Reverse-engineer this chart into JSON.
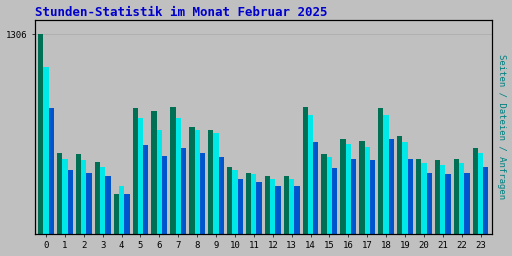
{
  "title": "Stunden-Statistik im Monat Februar 2025",
  "ylabel_right": "Seiten / Dateien / Anfragen",
  "background_color": "#c0c0c0",
  "plot_bg_color": "#c0c0c0",
  "title_color": "#0000cc",
  "ylabel_color": "#008080",
  "bar_width": 0.28,
  "hours": [
    0,
    1,
    2,
    3,
    4,
    5,
    6,
    7,
    8,
    9,
    10,
    11,
    12,
    13,
    14,
    15,
    16,
    17,
    18,
    19,
    20,
    21,
    22,
    23
  ],
  "seiten": [
    1306,
    530,
    520,
    470,
    260,
    820,
    800,
    830,
    700,
    680,
    440,
    400,
    380,
    380,
    830,
    520,
    620,
    610,
    820,
    640,
    490,
    480,
    490,
    560
  ],
  "dateien": [
    1090,
    490,
    480,
    440,
    310,
    760,
    680,
    760,
    680,
    660,
    420,
    390,
    360,
    360,
    780,
    500,
    590,
    570,
    780,
    600,
    460,
    450,
    460,
    530
  ],
  "anfragen": [
    820,
    420,
    400,
    380,
    260,
    580,
    510,
    560,
    530,
    500,
    360,
    340,
    310,
    310,
    600,
    430,
    490,
    480,
    620,
    490,
    400,
    390,
    400,
    440
  ],
  "color_seiten": "#007055",
  "color_dateien": "#00e8e8",
  "color_anfragen": "#0055cc",
  "grid_color": "#b0b0b0",
  "border_color": "#000000",
  "ymax": 1400,
  "ytick_val": 1306
}
